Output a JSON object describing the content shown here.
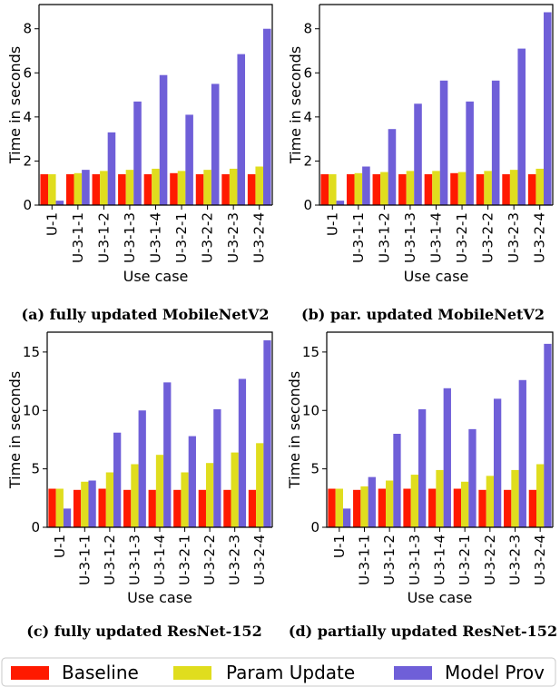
{
  "colors": {
    "Baseline": "#ff1a00",
    "Param Update": "#e0dd1e",
    "Model Prov": "#6f5fd8"
  },
  "legend": {
    "items": [
      "Baseline",
      "Param Update",
      "Model Prov"
    ]
  },
  "chart_data": [
    {
      "type": "bar",
      "caption": "(a) fully updated MobileNetV2",
      "xlabel": "Use case",
      "ylabel": "Time in seconds",
      "ylim": [
        0,
        9.1
      ],
      "yticks": [
        0,
        2,
        4,
        6,
        8
      ],
      "categories": [
        "U-1",
        "U-3-1-1",
        "U-3-1-2",
        "U-3-1-3",
        "U-3-1-4",
        "U-3-2-1",
        "U-3-2-2",
        "U-3-2-3",
        "U-3-2-4"
      ],
      "series": [
        {
          "name": "Baseline",
          "values": [
            1.4,
            1.4,
            1.4,
            1.4,
            1.4,
            1.45,
            1.4,
            1.4,
            1.4
          ]
        },
        {
          "name": "Param Update",
          "values": [
            1.4,
            1.45,
            1.55,
            1.6,
            1.65,
            1.55,
            1.6,
            1.65,
            1.75
          ]
        },
        {
          "name": "Model Prov",
          "values": [
            0.2,
            1.6,
            3.3,
            4.7,
            5.9,
            4.1,
            5.5,
            6.85,
            8.0
          ]
        }
      ]
    },
    {
      "type": "bar",
      "caption": "(b) par. updated MobileNetV2",
      "xlabel": "Use case",
      "ylabel": "Time in seconds",
      "ylim": [
        0,
        9.1
      ],
      "yticks": [
        0,
        2,
        4,
        6,
        8
      ],
      "categories": [
        "U-1",
        "U-3-1-1",
        "U-3-1-2",
        "U-3-1-3",
        "U-3-1-4",
        "U-3-2-1",
        "U-3-2-2",
        "U-3-2-3",
        "U-3-2-4"
      ],
      "series": [
        {
          "name": "Baseline",
          "values": [
            1.4,
            1.4,
            1.4,
            1.4,
            1.4,
            1.45,
            1.4,
            1.4,
            1.4
          ]
        },
        {
          "name": "Param Update",
          "values": [
            1.4,
            1.45,
            1.5,
            1.55,
            1.55,
            1.5,
            1.55,
            1.6,
            1.65
          ]
        },
        {
          "name": "Model Prov",
          "values": [
            0.2,
            1.75,
            3.45,
            4.6,
            5.65,
            4.7,
            5.65,
            7.1,
            8.75
          ]
        }
      ]
    },
    {
      "type": "bar",
      "caption": "(c) fully updated ResNet-152",
      "xlabel": "Use case",
      "ylabel": "Time in seconds",
      "ylim": [
        0,
        16.7
      ],
      "yticks": [
        0,
        5,
        10,
        15
      ],
      "categories": [
        "U-1",
        "U-3-1-1",
        "U-3-1-2",
        "U-3-1-3",
        "U-3-1-4",
        "U-3-2-1",
        "U-3-2-2",
        "U-3-2-3",
        "U-3-2-4"
      ],
      "series": [
        {
          "name": "Baseline",
          "values": [
            3.3,
            3.2,
            3.3,
            3.2,
            3.2,
            3.2,
            3.2,
            3.2,
            3.2
          ]
        },
        {
          "name": "Param Update",
          "values": [
            3.3,
            3.9,
            4.7,
            5.4,
            6.2,
            4.7,
            5.5,
            6.4,
            7.2
          ]
        },
        {
          "name": "Model Prov",
          "values": [
            1.6,
            4.0,
            8.1,
            10.0,
            12.4,
            7.8,
            10.1,
            12.7,
            16.0
          ]
        }
      ]
    },
    {
      "type": "bar",
      "caption": "(d) partially updated ResNet-152",
      "xlabel": "Use case",
      "ylabel": "Time in seconds",
      "ylim": [
        0,
        16.7
      ],
      "yticks": [
        0,
        5,
        10,
        15
      ],
      "categories": [
        "U-1",
        "U-3-1-1",
        "U-3-1-2",
        "U-3-1-3",
        "U-3-1-4",
        "U-3-2-1",
        "U-3-2-2",
        "U-3-2-3",
        "U-3-2-4"
      ],
      "series": [
        {
          "name": "Baseline",
          "values": [
            3.3,
            3.2,
            3.3,
            3.3,
            3.3,
            3.3,
            3.2,
            3.2,
            3.2
          ]
        },
        {
          "name": "Param Update",
          "values": [
            3.3,
            3.5,
            4.0,
            4.5,
            4.9,
            3.9,
            4.4,
            4.9,
            5.4
          ]
        },
        {
          "name": "Model Prov",
          "values": [
            1.6,
            4.3,
            8.0,
            10.1,
            11.9,
            8.4,
            11.0,
            12.6,
            15.7
          ]
        }
      ]
    }
  ]
}
